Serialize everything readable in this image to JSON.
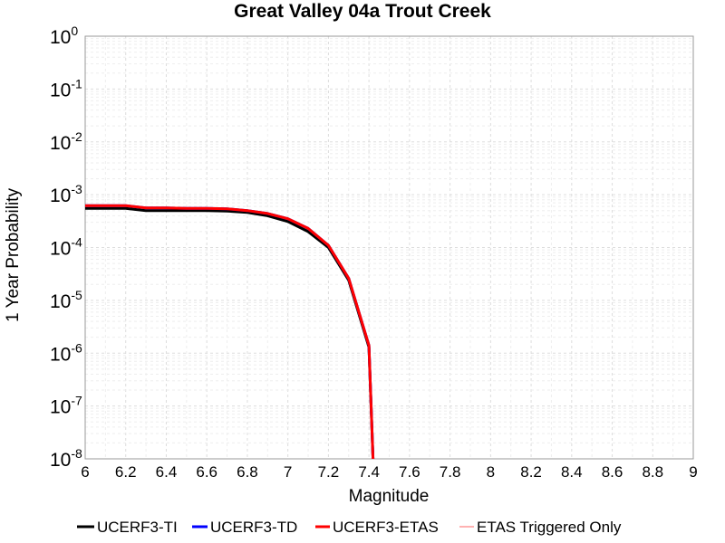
{
  "chart_data": {
    "type": "line",
    "title": "Great Valley 04a Trout Creek",
    "xlabel": "Magnitude",
    "ylabel": "1 Year Probability",
    "xlim": [
      6,
      9
    ],
    "ylim": [
      1e-08,
      1
    ],
    "yscale": "log",
    "grid": true,
    "legend_position": "bottom",
    "x_ticks": [
      "6",
      "6.2",
      "6.4",
      "6.6",
      "6.8",
      "7",
      "7.2",
      "7.4",
      "7.6",
      "7.8",
      "8",
      "8.2",
      "8.4",
      "8.6",
      "8.8",
      "9"
    ],
    "y_ticks": [
      {
        "base": "10",
        "exp": "0"
      },
      {
        "base": "10",
        "exp": "-1"
      },
      {
        "base": "10",
        "exp": "-2"
      },
      {
        "base": "10",
        "exp": "-3"
      },
      {
        "base": "10",
        "exp": "-4"
      },
      {
        "base": "10",
        "exp": "-5"
      },
      {
        "base": "10",
        "exp": "-6"
      },
      {
        "base": "10",
        "exp": "-7"
      },
      {
        "base": "10",
        "exp": "-8"
      }
    ],
    "series": [
      {
        "name": "UCERF3-TI",
        "color": "#000000",
        "width": 3,
        "x": [
          6.0,
          6.1,
          6.2,
          6.3,
          6.4,
          6.5,
          6.6,
          6.7,
          6.8,
          6.9,
          7.0,
          7.1,
          7.2,
          7.3,
          7.4,
          7.42
        ],
        "y": [
          0.00055,
          0.00055,
          0.00055,
          0.0005,
          0.0005,
          0.0005,
          0.0005,
          0.00049,
          0.00046,
          0.0004,
          0.00031,
          0.0002,
          0.0001,
          2.4e-05,
          1.3e-06,
          1e-09
        ]
      },
      {
        "name": "UCERF3-TD",
        "color": "#0000ff",
        "width": 3,
        "x": [
          6.0,
          6.1,
          6.2,
          6.3,
          6.4,
          6.5,
          6.6,
          6.7,
          6.8,
          6.9,
          7.0,
          7.1,
          7.2,
          7.3,
          7.4,
          7.42
        ],
        "y": [
          0.00062,
          0.00062,
          0.00062,
          0.00056,
          0.00056,
          0.00055,
          0.00055,
          0.00054,
          0.0005,
          0.00044,
          0.00035,
          0.00023,
          0.00011,
          2.6e-05,
          1.4e-06,
          1e-09
        ]
      },
      {
        "name": "UCERF3-ETAS",
        "color": "#ff0000",
        "width": 3,
        "x": [
          6.0,
          6.1,
          6.2,
          6.3,
          6.4,
          6.5,
          6.6,
          6.7,
          6.8,
          6.9,
          7.0,
          7.1,
          7.2,
          7.3,
          7.4,
          7.42
        ],
        "y": [
          0.00062,
          0.00062,
          0.00062,
          0.00056,
          0.00056,
          0.00055,
          0.00055,
          0.00054,
          0.0005,
          0.00044,
          0.00035,
          0.00023,
          0.00011,
          2.6e-05,
          1.4e-06,
          1e-09
        ]
      },
      {
        "name": "ETAS Triggered Only",
        "color": "#ff9999",
        "width": 1.5,
        "x": [],
        "y": []
      }
    ]
  }
}
